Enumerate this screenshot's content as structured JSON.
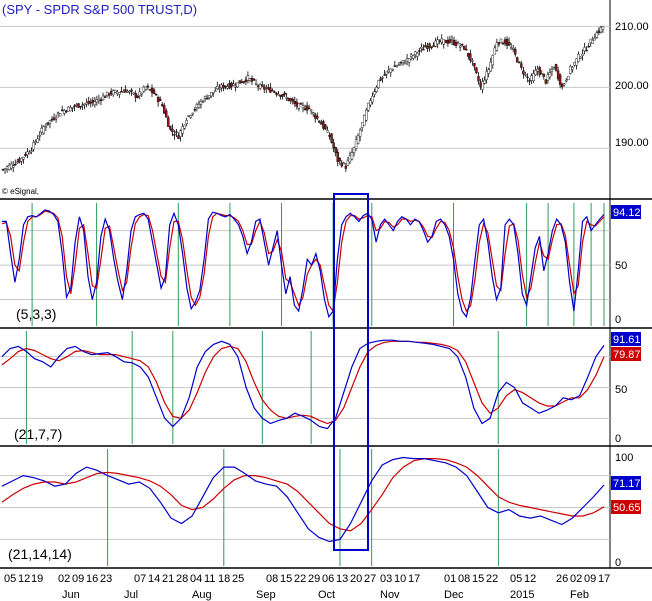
{
  "chart_data": [
    {
      "type": "candlestick",
      "title": "(SPY - SPDR S&P 500 TRUST,D)",
      "source_label": "© eSignal,",
      "y_ticks": [
        "210.00",
        "200.00",
        "190.00"
      ],
      "ylim": [
        182,
        214
      ],
      "ohlc_step_days": 1,
      "close_anchors": [
        [
          0,
          186.5
        ],
        [
          8,
          188
        ],
        [
          14,
          190
        ],
        [
          20,
          193.5
        ],
        [
          28,
          196
        ],
        [
          36,
          197
        ],
        [
          44,
          197.5
        ],
        [
          52,
          199
        ],
        [
          60,
          199.5
        ],
        [
          66,
          198.5
        ],
        [
          70,
          200
        ],
        [
          74,
          199
        ],
        [
          78,
          197
        ],
        [
          82,
          193
        ],
        [
          86,
          192
        ],
        [
          90,
          195
        ],
        [
          98,
          198
        ],
        [
          106,
          200
        ],
        [
          114,
          200.5
        ],
        [
          120,
          201.5
        ],
        [
          126,
          200
        ],
        [
          132,
          199.5
        ],
        [
          138,
          198.5
        ],
        [
          144,
          197
        ],
        [
          150,
          196.5
        ],
        [
          156,
          194
        ],
        [
          160,
          192
        ],
        [
          164,
          188
        ],
        [
          168,
          187
        ],
        [
          172,
          190
        ],
        [
          176,
          194
        ],
        [
          180,
          198
        ],
        [
          184,
          201
        ],
        [
          190,
          203
        ],
        [
          198,
          204.5
        ],
        [
          206,
          206.5
        ],
        [
          214,
          207.5
        ],
        [
          220,
          207.5
        ],
        [
          226,
          206.5
        ],
        [
          230,
          204
        ],
        [
          234,
          200
        ],
        [
          238,
          203
        ],
        [
          242,
          207.5
        ],
        [
          246,
          207.5
        ],
        [
          250,
          206
        ],
        [
          254,
          203
        ],
        [
          258,
          201
        ],
        [
          262,
          203
        ],
        [
          266,
          201
        ],
        [
          270,
          203.5
        ],
        [
          274,
          200
        ],
        [
          278,
          203
        ],
        [
          282,
          205
        ],
        [
          286,
          206.5
        ],
        [
          290,
          208.5
        ],
        [
          294,
          210
        ]
      ],
      "bar_count": 295
    },
    {
      "type": "line",
      "param_label": "(5,3,3)",
      "y_ticks": [
        "50",
        "0"
      ],
      "ylim": [
        -3,
        104
      ],
      "last_blue": "94.12",
      "series": [
        {
          "color": "#0000cc",
          "values": [
            88,
            88,
            60,
            35,
            55,
            85,
            92,
            93,
            92,
            95,
            98,
            97,
            94,
            88,
            60,
            22,
            30,
            70,
            92,
            80,
            40,
            20,
            35,
            75,
            90,
            80,
            55,
            35,
            20,
            45,
            80,
            92,
            94,
            95,
            90,
            70,
            50,
            30,
            40,
            85,
            95,
            85,
            60,
            30,
            12,
            18,
            28,
            55,
            90,
            96,
            95,
            93,
            92,
            94,
            90,
            85,
            75,
            60,
            70,
            88,
            90,
            70,
            50,
            65,
            80,
            50,
            25,
            40,
            15,
            10,
            30,
            55,
            50,
            60,
            45,
            20,
            5,
            10,
            55,
            85,
            92,
            95,
            92,
            88,
            93,
            95,
            90,
            70,
            85,
            90,
            85,
            80,
            88,
            92,
            90,
            85,
            90,
            88,
            80,
            70,
            75,
            88,
            90,
            85,
            75,
            55,
            25,
            10,
            5,
            22,
            55,
            85,
            90,
            70,
            40,
            20,
            30,
            85,
            90,
            85,
            60,
            25,
            15,
            40,
            65,
            75,
            45,
            60,
            80,
            90,
            85,
            70,
            35,
            10,
            45,
            88,
            92,
            80,
            85,
            90,
            94
          ]
        },
        {
          "color": "#cc0000",
          "values": [
            86,
            87,
            75,
            50,
            45,
            70,
            88,
            92,
            92,
            94,
            97,
            96,
            95,
            91,
            75,
            40,
            25,
            50,
            82,
            85,
            60,
            32,
            30,
            55,
            82,
            84,
            65,
            45,
            28,
            35,
            65,
            86,
            92,
            94,
            93,
            80,
            60,
            40,
            35,
            65,
            88,
            88,
            72,
            45,
            22,
            15,
            22,
            42,
            75,
            92,
            95,
            94,
            93,
            93,
            91,
            88,
            80,
            68,
            68,
            80,
            88,
            78,
            60,
            62,
            72,
            62,
            38,
            35,
            25,
            15,
            22,
            42,
            50,
            55,
            50,
            32,
            15,
            10,
            35,
            70,
            88,
            93,
            93,
            90,
            91,
            93,
            92,
            80,
            82,
            88,
            87,
            83,
            85,
            90,
            90,
            88,
            89,
            88,
            83,
            75,
            74,
            82,
            88,
            87,
            80,
            65,
            40,
            20,
            10,
            15,
            38,
            70,
            86,
            78,
            55,
            32,
            28,
            60,
            84,
            86,
            72,
            42,
            22,
            30,
            52,
            70,
            58,
            55,
            72,
            85,
            86,
            76,
            50,
            25,
            32,
            70,
            88,
            85,
            84,
            88,
            92
          ]
        }
      ],
      "signal_lines_index": [
        7,
        22,
        41,
        53,
        65,
        77,
        86,
        105,
        122,
        127,
        133,
        137,
        140
      ],
      "grid_levels": [
        80,
        50,
        20
      ]
    },
    {
      "type": "line",
      "param_label": "(21,7,7)",
      "y_ticks": [
        "50",
        "0"
      ],
      "ylim": [
        -5,
        105
      ],
      "last_blue": "91.61",
      "last_red": "79.87",
      "series": [
        {
          "color": "#0000cc",
          "values": [
            80,
            88,
            90,
            85,
            78,
            75,
            70,
            80,
            88,
            90,
            85,
            82,
            83,
            84,
            80,
            75,
            74,
            70,
            60,
            40,
            20,
            12,
            20,
            40,
            70,
            85,
            92,
            95,
            92,
            80,
            50,
            30,
            20,
            15,
            18,
            20,
            25,
            22,
            18,
            12,
            10,
            20,
            45,
            70,
            88,
            93,
            95,
            96,
            96,
            95,
            95,
            94,
            93,
            92,
            90,
            88,
            80,
            60,
            30,
            15,
            20,
            45,
            55,
            50,
            35,
            30,
            25,
            28,
            32,
            40,
            38,
            42,
            60,
            80,
            91
          ]
        },
        {
          "color": "#cc0000",
          "values": [
            72,
            78,
            85,
            88,
            86,
            82,
            78,
            76,
            80,
            85,
            86,
            84,
            82,
            82,
            82,
            80,
            78,
            76,
            70,
            55,
            35,
            22,
            20,
            28,
            45,
            65,
            80,
            88,
            90,
            88,
            75,
            55,
            38,
            28,
            22,
            20,
            22,
            23,
            22,
            18,
            15,
            18,
            30,
            50,
            70,
            85,
            91,
            94,
            95,
            95,
            95,
            94,
            94,
            93,
            92,
            90,
            86,
            75,
            55,
            35,
            25,
            30,
            42,
            48,
            45,
            40,
            35,
            32,
            32,
            36,
            40,
            40,
            48,
            62,
            79.87
          ]
        }
      ],
      "signal_lines_index": [
        3,
        16,
        21,
        32,
        38,
        61
      ],
      "grid_levels": [
        80,
        50,
        20
      ]
    },
    {
      "type": "line",
      "param_label": "(21,14,14)",
      "y_ticks": [
        "100",
        "50",
        "0"
      ],
      "ylim": [
        -5,
        105
      ],
      "last_blue": "71.17",
      "last_red": "50.65",
      "series": [
        {
          "color": "#0000cc",
          "values": [
            70,
            75,
            80,
            78,
            75,
            70,
            72,
            82,
            88,
            85,
            80,
            76,
            72,
            74,
            68,
            55,
            40,
            35,
            42,
            60,
            78,
            88,
            88,
            82,
            75,
            72,
            70,
            60,
            45,
            30,
            22,
            18,
            20,
            35,
            55,
            75,
            90,
            95,
            97,
            96,
            96,
            94,
            92,
            88,
            80,
            65,
            50,
            45,
            48,
            42,
            40,
            42,
            38,
            34,
            40,
            50,
            60,
            71.17
          ]
        },
        {
          "color": "#cc0000",
          "values": [
            55,
            62,
            68,
            72,
            74,
            74,
            72,
            74,
            78,
            82,
            83,
            82,
            80,
            78,
            75,
            70,
            62,
            52,
            48,
            50,
            58,
            68,
            76,
            80,
            80,
            78,
            75,
            72,
            65,
            55,
            45,
            35,
            30,
            28,
            35,
            48,
            62,
            78,
            88,
            94,
            96,
            96,
            95,
            92,
            88,
            80,
            70,
            60,
            55,
            52,
            50,
            48,
            46,
            44,
            42,
            42,
            45,
            50.65
          ]
        }
      ],
      "signal_lines_index": [
        10,
        21,
        32,
        35,
        47
      ],
      "grid_levels": [
        80,
        50,
        20
      ]
    }
  ],
  "x_axis": {
    "day_labels": [
      "05",
      "12",
      "19",
      "02",
      "09",
      "16",
      "23",
      "07",
      "14",
      "21",
      "28",
      "04",
      "11",
      "18",
      "25",
      "08",
      "15",
      "22",
      "29",
      "06",
      "13",
      "20",
      "27",
      "03",
      "10",
      "17",
      "01",
      "08",
      "15",
      "22",
      "05",
      "12",
      "26",
      "02",
      "09",
      "17"
    ],
    "month_labels": [
      "Jun",
      "Jul",
      "Aug",
      "Sep",
      "Oct",
      "Nov",
      "Dec",
      "2015",
      "Feb"
    ]
  },
  "colors": {
    "blue_line": "#0000cc",
    "red_line": "#cc0000",
    "signal_line": "#2e9c55",
    "grid": "#c8c8c8",
    "highlight_box": "#0000cc"
  }
}
